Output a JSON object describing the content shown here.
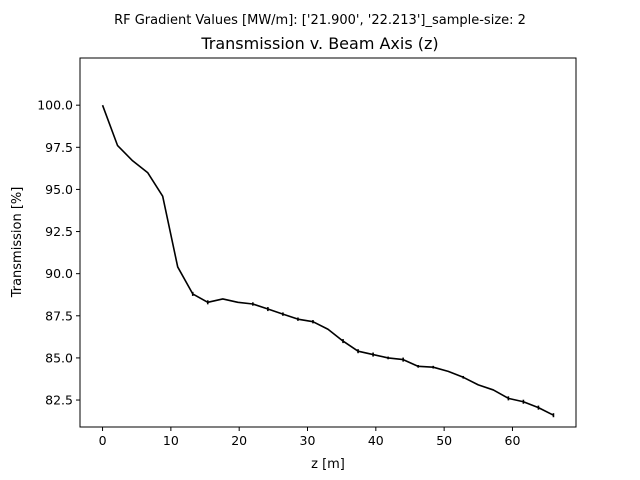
{
  "chart_data": {
    "type": "line",
    "suptitle": "RF Gradient Values [MW/m]: ['21.900', '22.213']_sample-size: 2",
    "title": "Transmission v. Beam Axis (z)",
    "xlabel": "z [m]",
    "ylabel": "Transmission [%]",
    "xlim": [
      -3.3,
      69.3
    ],
    "ylim": [
      80.9,
      102.8
    ],
    "xticks": [
      0,
      10,
      20,
      30,
      40,
      50,
      60
    ],
    "xtick_labels": [
      "0",
      "10",
      "20",
      "30",
      "40",
      "50",
      "60"
    ],
    "yticks": [
      82.5,
      85.0,
      87.5,
      90.0,
      92.5,
      95.0,
      97.5,
      100.0
    ],
    "ytick_labels": [
      "82.5",
      "85.0",
      "87.5",
      "90.0",
      "92.5",
      "95.0",
      "97.5",
      "100.0"
    ],
    "grid": false,
    "legend": "none",
    "series": [
      {
        "color": "#000000",
        "error_bars": true,
        "x": [
          0.0,
          2.2,
          4.4,
          6.6,
          8.8,
          11.0,
          13.2,
          15.4,
          17.6,
          19.8,
          22.0,
          24.2,
          26.4,
          28.6,
          30.8,
          33.0,
          35.2,
          37.4,
          39.6,
          41.8,
          44.0,
          46.2,
          48.4,
          50.6,
          52.8,
          55.0,
          57.2,
          59.4,
          61.6,
          63.8,
          66.0
        ],
        "y": [
          100.0,
          97.6,
          96.7,
          96.0,
          94.6,
          90.4,
          88.8,
          88.3,
          88.5,
          88.3,
          88.2,
          87.9,
          87.6,
          87.3,
          87.15,
          86.7,
          86.0,
          85.4,
          85.2,
          85.0,
          84.9,
          84.5,
          84.45,
          84.2,
          83.85,
          83.4,
          83.1,
          82.6,
          82.4,
          82.05,
          81.6
        ],
        "yerr": [
          0,
          0,
          0,
          0,
          0,
          0,
          0.12,
          0.12,
          0,
          0,
          0.1,
          0.12,
          0.1,
          0.1,
          0.1,
          0,
          0.12,
          0.12,
          0.12,
          0.08,
          0.12,
          0.08,
          0.08,
          0,
          0.08,
          0,
          0,
          0.12,
          0.12,
          0.12,
          0.12
        ]
      }
    ]
  }
}
